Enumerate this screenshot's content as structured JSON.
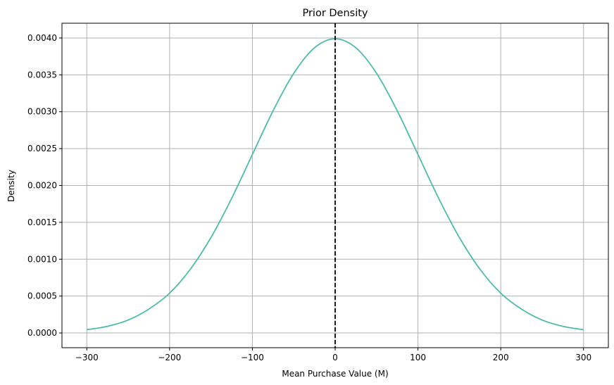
{
  "chart_data": {
    "type": "line",
    "title": "Prior Density",
    "xlabel": "Mean Purchase Value (M)",
    "ylabel": "Density",
    "xlim": [
      -330,
      330
    ],
    "ylim": [
      -0.0002,
      0.0042
    ],
    "xticks": [
      -300,
      -200,
      -100,
      0,
      100,
      200,
      300
    ],
    "xtick_labels": [
      "−300",
      "−200",
      "−100",
      "0",
      "100",
      "200",
      "300"
    ],
    "yticks": [
      0.0,
      0.0005,
      0.001,
      0.0015,
      0.002,
      0.0025,
      0.003,
      0.0035,
      0.004
    ],
    "ytick_labels": [
      "0.0000",
      "0.0005",
      "0.0010",
      "0.0015",
      "0.0020",
      "0.0025",
      "0.0030",
      "0.0035",
      "0.0040"
    ],
    "grid": true,
    "series": [
      {
        "line_color": "#4dbbaa",
        "x": [
          -300,
          -275,
          -250,
          -225,
          -200,
          -175,
          -150,
          -125,
          -100,
          -75,
          -50,
          -25,
          0,
          25,
          50,
          75,
          100,
          125,
          150,
          175,
          200,
          225,
          250,
          275,
          300
        ],
        "y": [
          4.43e-05,
          9.03e-05,
          0.0001753,
          0.0003238,
          0.00054,
          0.000863,
          0.001295,
          0.001826,
          0.00242,
          0.003012,
          0.003521,
          0.003867,
          0.003989,
          0.003867,
          0.003521,
          0.003012,
          0.00242,
          0.001826,
          0.001295,
          0.000863,
          0.00054,
          0.0003238,
          0.0001753,
          9.03e-05,
          4.43e-05
        ]
      }
    ],
    "reference_line": {
      "x": 0,
      "style": "dashed",
      "color": "#000000"
    }
  }
}
